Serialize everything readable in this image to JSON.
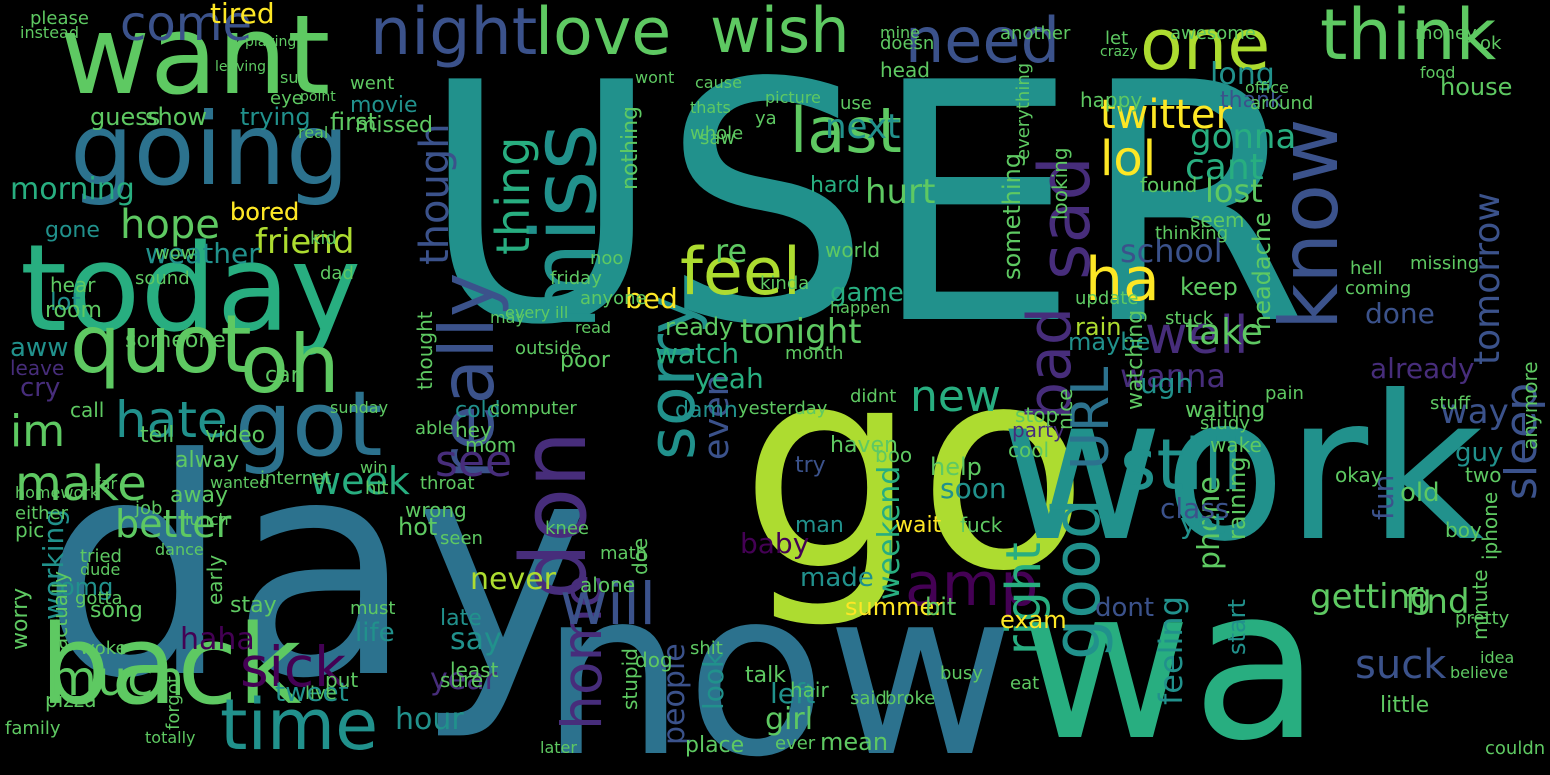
{
  "background_color": "#000000",
  "palette": {
    "deep_purple": "#440154",
    "indigo": "#472d7b",
    "blue": "#3b528b",
    "steel": "#2c728e",
    "teal": "#21918c",
    "green": "#28ae80",
    "light_green": "#5ec962",
    "lime": "#addc30",
    "yellow": "#fde725"
  },
  "words": [
    {
      "text": "USER",
      "color": "#21918c"
    },
    {
      "text": "day",
      "color": "#2c728e"
    },
    {
      "text": "go",
      "color": "#addc30"
    },
    {
      "text": "work",
      "color": "#21918c"
    },
    {
      "text": "now",
      "color": "#2c728e"
    },
    {
      "text": "wa",
      "color": "#28ae80"
    },
    {
      "text": "want",
      "color": "#5ec962"
    },
    {
      "text": "today",
      "color": "#28ae80"
    },
    {
      "text": "going",
      "color": "#2c728e"
    },
    {
      "text": "back",
      "color": "#5ec962"
    },
    {
      "text": "miss",
      "color": "#21918c"
    },
    {
      "text": "got",
      "color": "#2c728e"
    },
    {
      "text": "really",
      "color": "#3b528b"
    },
    {
      "text": "one",
      "color": "#addc30"
    },
    {
      "text": "think",
      "color": "#5ec962"
    },
    {
      "text": "need",
      "color": "#3b528b"
    },
    {
      "text": "know",
      "color": "#3b528b"
    },
    {
      "text": "sad",
      "color": "#472d7b"
    },
    {
      "text": "bad",
      "color": "#472d7b"
    },
    {
      "text": "still",
      "color": "#21918c"
    },
    {
      "text": "URL",
      "color": "#2c728e"
    },
    {
      "text": "don",
      "color": "#472d7b"
    },
    {
      "text": "home",
      "color": "#472d7b"
    },
    {
      "text": "time",
      "color": "#21918c"
    },
    {
      "text": "quot",
      "color": "#5ec962"
    },
    {
      "text": "oh",
      "color": "#5ec962"
    },
    {
      "text": "night",
      "color": "#3b528b"
    },
    {
      "text": "love",
      "color": "#5ec962"
    },
    {
      "text": "wish",
      "color": "#5ec962"
    },
    {
      "text": "last",
      "color": "#5ec962"
    },
    {
      "text": "sorry",
      "color": "#21918c"
    },
    {
      "text": "feel",
      "color": "#addc30"
    },
    {
      "text": "lol",
      "color": "#fde725"
    },
    {
      "text": "ha",
      "color": "#fde725"
    },
    {
      "text": "well",
      "color": "#472d7b"
    },
    {
      "text": "good",
      "color": "#21918c"
    },
    {
      "text": "amp",
      "color": "#440154"
    },
    {
      "text": "will",
      "color": "#3b528b"
    },
    {
      "text": "sick",
      "color": "#440154"
    },
    {
      "text": "much",
      "color": "#5ec962"
    },
    {
      "text": "make",
      "color": "#5ec962"
    },
    {
      "text": "hate",
      "color": "#21918c"
    },
    {
      "text": "im",
      "color": "#5ec962"
    },
    {
      "text": "see",
      "color": "#472d7b"
    },
    {
      "text": "week",
      "color": "#28ae80"
    },
    {
      "text": "new",
      "color": "#28ae80"
    },
    {
      "text": "right",
      "color": "#28ae80"
    },
    {
      "text": "tomorrow",
      "color": "#3b528b"
    },
    {
      "text": "sleep",
      "color": "#3b528b"
    },
    {
      "text": "twitter",
      "color": "#fde725"
    },
    {
      "text": "school",
      "color": "#3b528b"
    },
    {
      "text": "thing",
      "color": "#28ae80"
    },
    {
      "text": "come",
      "color": "#3b528b"
    },
    {
      "text": "hope",
      "color": "#5ec962"
    },
    {
      "text": "friend",
      "color": "#addc30"
    },
    {
      "text": "morning",
      "color": "#28ae80"
    },
    {
      "text": "tonight",
      "color": "#5ec962"
    },
    {
      "text": "hurt",
      "color": "#5ec962"
    },
    {
      "text": "next",
      "color": "#21918c"
    },
    {
      "text": "cant",
      "color": "#28ae80"
    },
    {
      "text": "lost",
      "color": "#5ec962"
    },
    {
      "text": "gonna",
      "color": "#28ae80"
    },
    {
      "text": "take",
      "color": "#5ec962"
    },
    {
      "text": "wanna",
      "color": "#472d7b"
    },
    {
      "text": "suck",
      "color": "#3b528b"
    },
    {
      "text": "find",
      "color": "#5ec962"
    },
    {
      "text": "getting",
      "color": "#5ec962"
    },
    {
      "text": "feeling",
      "color": "#21918c"
    },
    {
      "text": "though",
      "color": "#3b528b"
    },
    {
      "text": "even",
      "color": "#3b528b"
    },
    {
      "text": "tired",
      "color": "#fde725"
    },
    {
      "text": "bored",
      "color": "#fde725"
    },
    {
      "text": "weather",
      "color": "#21918c"
    },
    {
      "text": "yeah",
      "color": "#28ae80"
    },
    {
      "text": "watch",
      "color": "#28ae80"
    },
    {
      "text": "ready",
      "color": "#5ec962"
    },
    {
      "text": "bed",
      "color": "#fde725"
    },
    {
      "text": "re",
      "color": "#5ec962"
    },
    {
      "text": "hard",
      "color": "#28ae80"
    },
    {
      "text": "game",
      "color": "#28ae80"
    },
    {
      "text": "long",
      "color": "#21918c"
    },
    {
      "text": "already",
      "color": "#472d7b"
    },
    {
      "text": "way",
      "color": "#3b528b"
    },
    {
      "text": "hour",
      "color": "#21918c"
    },
    {
      "text": "year",
      "color": "#472d7b"
    },
    {
      "text": "say",
      "color": "#21918c"
    },
    {
      "text": "never",
      "color": "#addc30"
    },
    {
      "text": "people",
      "color": "#3b528b"
    },
    {
      "text": "look",
      "color": "#21918c"
    },
    {
      "text": "girl",
      "color": "#5ec962"
    },
    {
      "text": "left",
      "color": "#21918c"
    },
    {
      "text": "tweet",
      "color": "#21918c"
    },
    {
      "text": "life",
      "color": "#21918c"
    },
    {
      "text": "haha",
      "color": "#440154"
    },
    {
      "text": "better",
      "color": "#5ec962"
    },
    {
      "text": "working",
      "color": "#21918c"
    },
    {
      "text": "made",
      "color": "#21918c"
    },
    {
      "text": "weekend",
      "color": "#28ae80"
    },
    {
      "text": "baby",
      "color": "#440154"
    },
    {
      "text": "soon",
      "color": "#21918c"
    },
    {
      "text": "help",
      "color": "#5ec962"
    },
    {
      "text": "phone",
      "color": "#5ec962"
    },
    {
      "text": "class",
      "color": "#3b528b"
    },
    {
      "text": "yet",
      "color": "#21918c"
    },
    {
      "text": "old",
      "color": "#5ec962"
    },
    {
      "text": "fun",
      "color": "#3b528b"
    },
    {
      "text": "guy",
      "color": "#21918c"
    },
    {
      "text": "house",
      "color": "#5ec962"
    },
    {
      "text": "done",
      "color": "#3b528b"
    },
    {
      "text": "keep",
      "color": "#5ec962"
    },
    {
      "text": "ugh",
      "color": "#21918c"
    },
    {
      "text": "maybe",
      "color": "#21918c"
    },
    {
      "text": "rain",
      "color": "#addc30"
    },
    {
      "text": "movie",
      "color": "#21918c"
    },
    {
      "text": "missed",
      "color": "#5ec962"
    },
    {
      "text": "first",
      "color": "#5ec962"
    },
    {
      "text": "trying",
      "color": "#21918c"
    },
    {
      "text": "show",
      "color": "#5ec962"
    },
    {
      "text": "guess",
      "color": "#5ec962"
    },
    {
      "text": "gone",
      "color": "#21918c"
    },
    {
      "text": "lot",
      "color": "#21918c"
    },
    {
      "text": "aww",
      "color": "#21918c"
    },
    {
      "text": "cry",
      "color": "#472d7b"
    },
    {
      "text": "omg",
      "color": "#21918c"
    },
    {
      "text": "hot",
      "color": "#5ec962"
    },
    {
      "text": "stay",
      "color": "#5ec962"
    },
    {
      "text": "song",
      "color": "#5ec962"
    },
    {
      "text": "late",
      "color": "#21918c"
    },
    {
      "text": "exam",
      "color": "#fde725"
    },
    {
      "text": "summer",
      "color": "#fde725"
    },
    {
      "text": "bit",
      "color": "#5ec962"
    },
    {
      "text": "dont",
      "color": "#3b528b"
    },
    {
      "text": "start",
      "color": "#21918c"
    },
    {
      "text": "cold",
      "color": "#21918c"
    },
    {
      "text": "damn",
      "color": "#21918c"
    },
    {
      "text": "wait",
      "color": "#fde725"
    },
    {
      "text": "boo",
      "color": "#5ec962"
    },
    {
      "text": "try",
      "color": "#3b528b"
    },
    {
      "text": "man",
      "color": "#21918c"
    },
    {
      "text": "away",
      "color": "#5ec962"
    },
    {
      "text": "alway",
      "color": "#5ec962"
    },
    {
      "text": "call",
      "color": "#5ec962"
    },
    {
      "text": "pic",
      "color": "#5ec962"
    },
    {
      "text": "early",
      "color": "#5ec962"
    },
    {
      "text": "tell",
      "color": "#5ec962"
    },
    {
      "text": "video",
      "color": "#5ec962"
    },
    {
      "text": "car",
      "color": "#5ec962"
    },
    {
      "text": "leave",
      "color": "#472d7b"
    },
    {
      "text": "room",
      "color": "#5ec962"
    },
    {
      "text": "bored",
      "color": "#fde725"
    },
    {
      "text": "poor",
      "color": "#5ec962"
    },
    {
      "text": "nothing",
      "color": "#5ec962"
    },
    {
      "text": "happy",
      "color": "#5ec962"
    },
    {
      "text": "head",
      "color": "#5ec962"
    },
    {
      "text": "eye",
      "color": "#5ec962"
    },
    {
      "text": "went",
      "color": "#5ec962"
    },
    {
      "text": "doesn",
      "color": "#5ec962"
    },
    {
      "text": "another",
      "color": "#5ec962"
    },
    {
      "text": "let",
      "color": "#5ec962"
    },
    {
      "text": "awesome",
      "color": "#5ec962"
    },
    {
      "text": "money",
      "color": "#5ec962"
    },
    {
      "text": "ok",
      "color": "#5ec962"
    },
    {
      "text": "food",
      "color": "#5ec962"
    },
    {
      "text": "thank",
      "color": "#3b528b"
    },
    {
      "text": "please",
      "color": "#5ec962"
    },
    {
      "text": "hear",
      "color": "#5ec962"
    },
    {
      "text": "sound",
      "color": "#5ec962"
    },
    {
      "text": "job",
      "color": "#5ec962"
    },
    {
      "text": "wow",
      "color": "#5ec962"
    },
    {
      "text": "kid",
      "color": "#5ec962"
    },
    {
      "text": "dad",
      "color": "#5ec962"
    },
    {
      "text": "mom",
      "color": "#5ec962"
    },
    {
      "text": "hey",
      "color": "#5ec962"
    },
    {
      "text": "okay",
      "color": "#5ec962"
    },
    {
      "text": "two",
      "color": "#5ec962"
    },
    {
      "text": "party",
      "color": "#472d7b"
    },
    {
      "text": "stop",
      "color": "#5ec962"
    },
    {
      "text": "cool",
      "color": "#5ec962"
    },
    {
      "text": "nice",
      "color": "#5ec962"
    },
    {
      "text": "boy",
      "color": "#5ec962"
    },
    {
      "text": "wake",
      "color": "#5ec962"
    },
    {
      "text": "fuck",
      "color": "#5ec962"
    },
    {
      "text": "internet",
      "color": "#5ec962"
    },
    {
      "text": "computer",
      "color": "#5ec962"
    },
    {
      "text": "outside",
      "color": "#5ec962"
    },
    {
      "text": "every",
      "color": "#5ec962"
    },
    {
      "text": "month",
      "color": "#5ec962"
    },
    {
      "text": "didnt",
      "color": "#5ec962"
    },
    {
      "text": "haven",
      "color": "#5ec962"
    },
    {
      "text": "yesterday",
      "color": "#5ec962"
    },
    {
      "text": "waiting",
      "color": "#5ec962"
    },
    {
      "text": "study",
      "color": "#5ec962"
    },
    {
      "text": "stuff",
      "color": "#5ec962"
    },
    {
      "text": "pain",
      "color": "#5ec962"
    },
    {
      "text": "coming",
      "color": "#5ec962"
    },
    {
      "text": "hell",
      "color": "#5ec962"
    },
    {
      "text": "missing",
      "color": "#5ec962"
    },
    {
      "text": "stuck",
      "color": "#5ec962"
    },
    {
      "text": "update",
      "color": "#5ec962"
    },
    {
      "text": "someone",
      "color": "#5ec962"
    },
    {
      "text": "anyone",
      "color": "#5ec962"
    },
    {
      "text": "whole",
      "color": "#5ec962"
    },
    {
      "text": "saw",
      "color": "#5ec962"
    },
    {
      "text": "ya",
      "color": "#5ec962"
    },
    {
      "text": "use",
      "color": "#5ec962"
    },
    {
      "text": "picture",
      "color": "#5ec962"
    },
    {
      "text": "world",
      "color": "#5ec962"
    },
    {
      "text": "happen",
      "color": "#5ec962"
    },
    {
      "text": "kinda",
      "color": "#5ec962"
    },
    {
      "text": "friday",
      "color": "#5ec962"
    },
    {
      "text": "noo",
      "color": "#5ec962"
    },
    {
      "text": "may",
      "color": "#5ec962"
    },
    {
      "text": "ill",
      "color": "#5ec962"
    },
    {
      "text": "read",
      "color": "#5ec962"
    },
    {
      "text": "sunday",
      "color": "#5ec962"
    },
    {
      "text": "win",
      "color": "#5ec962"
    },
    {
      "text": "thought",
      "color": "#5ec962"
    },
    {
      "text": "able",
      "color": "#5ec962"
    },
    {
      "text": "hit",
      "color": "#5ec962"
    },
    {
      "text": "throat",
      "color": "#5ec962"
    },
    {
      "text": "wrong",
      "color": "#5ec962"
    },
    {
      "text": "seen",
      "color": "#5ec962"
    },
    {
      "text": "knee",
      "color": "#5ec962"
    },
    {
      "text": "math",
      "color": "#5ec962"
    },
    {
      "text": "alone",
      "color": "#5ec962"
    },
    {
      "text": "doe",
      "color": "#5ec962"
    },
    {
      "text": "dog",
      "color": "#5ec962"
    },
    {
      "text": "stupid",
      "color": "#5ec962"
    },
    {
      "text": "shit",
      "color": "#5ec962"
    },
    {
      "text": "least",
      "color": "#5ec962"
    },
    {
      "text": "sure",
      "color": "#5ec962"
    },
    {
      "text": "must",
      "color": "#5ec962"
    },
    {
      "text": "put",
      "color": "#5ec962"
    },
    {
      "text": "live",
      "color": "#5ec962"
    },
    {
      "text": "ever",
      "color": "#5ec962"
    },
    {
      "text": "talk",
      "color": "#5ec962"
    },
    {
      "text": "hair",
      "color": "#5ec962"
    },
    {
      "text": "mean",
      "color": "#5ec962"
    },
    {
      "text": "said",
      "color": "#5ec962"
    },
    {
      "text": "broke",
      "color": "#5ec962"
    },
    {
      "text": "busy",
      "color": "#5ec962"
    },
    {
      "text": "eat",
      "color": "#5ec962"
    },
    {
      "text": "place",
      "color": "#5ec962"
    },
    {
      "text": "later",
      "color": "#5ec962"
    },
    {
      "text": "couldn",
      "color": "#5ec962"
    },
    {
      "text": "little",
      "color": "#5ec962"
    },
    {
      "text": "believe",
      "color": "#5ec962"
    },
    {
      "text": "pretty",
      "color": "#5ec962"
    },
    {
      "text": "idea",
      "color": "#5ec962"
    },
    {
      "text": "minute",
      "color": "#5ec962"
    },
    {
      "text": "anymore",
      "color": "#5ec962"
    },
    {
      "text": "iphone",
      "color": "#5ec962"
    },
    {
      "text": "family",
      "color": "#5ec962"
    },
    {
      "text": "pizza",
      "color": "#5ec962"
    },
    {
      "text": "totally",
      "color": "#5ec962"
    },
    {
      "text": "forgot",
      "color": "#5ec962"
    },
    {
      "text": "tried",
      "color": "#5ec962"
    },
    {
      "text": "dude",
      "color": "#5ec962"
    },
    {
      "text": "gotta",
      "color": "#5ec962"
    },
    {
      "text": "either",
      "color": "#5ec962"
    },
    {
      "text": "homework",
      "color": "#5ec962"
    },
    {
      "text": "far",
      "color": "#5ec962"
    },
    {
      "text": "wanted",
      "color": "#5ec962"
    },
    {
      "text": "lunch",
      "color": "#5ec962"
    },
    {
      "text": "dance",
      "color": "#5ec962"
    },
    {
      "text": "woke",
      "color": "#5ec962"
    },
    {
      "text": "instead",
      "color": "#5ec962"
    },
    {
      "text": "playing",
      "color": "#5ec962"
    },
    {
      "text": "leaving",
      "color": "#5ec962"
    },
    {
      "text": "sun",
      "color": "#5ec962"
    },
    {
      "text": "point",
      "color": "#5ec962"
    },
    {
      "text": "real",
      "color": "#5ec962"
    },
    {
      "text": "mine",
      "color": "#5ec962"
    },
    {
      "text": "cause",
      "color": "#5ec962"
    },
    {
      "text": "wont",
      "color": "#5ec962"
    },
    {
      "text": "thats",
      "color": "#5ec962"
    },
    {
      "text": "crazy",
      "color": "#5ec962"
    },
    {
      "text": "office",
      "color": "#5ec962"
    },
    {
      "text": "around",
      "color": "#5ec962"
    },
    {
      "text": "found",
      "color": "#5ec962"
    },
    {
      "text": "seem",
      "color": "#5ec962"
    },
    {
      "text": "thinking",
      "color": "#5ec962"
    },
    {
      "text": "everything",
      "color": "#5ec962"
    },
    {
      "text": "something",
      "color": "#5ec962"
    },
    {
      "text": "watching",
      "color": "#5ec962"
    },
    {
      "text": "headache",
      "color": "#5ec962"
    },
    {
      "text": "looking",
      "color": "#5ec962"
    },
    {
      "text": "raining",
      "color": "#5ec962"
    },
    {
      "text": "worry",
      "color": "#5ec962"
    },
    {
      "text": "actually",
      "color": "#5ec962"
    }
  ]
}
